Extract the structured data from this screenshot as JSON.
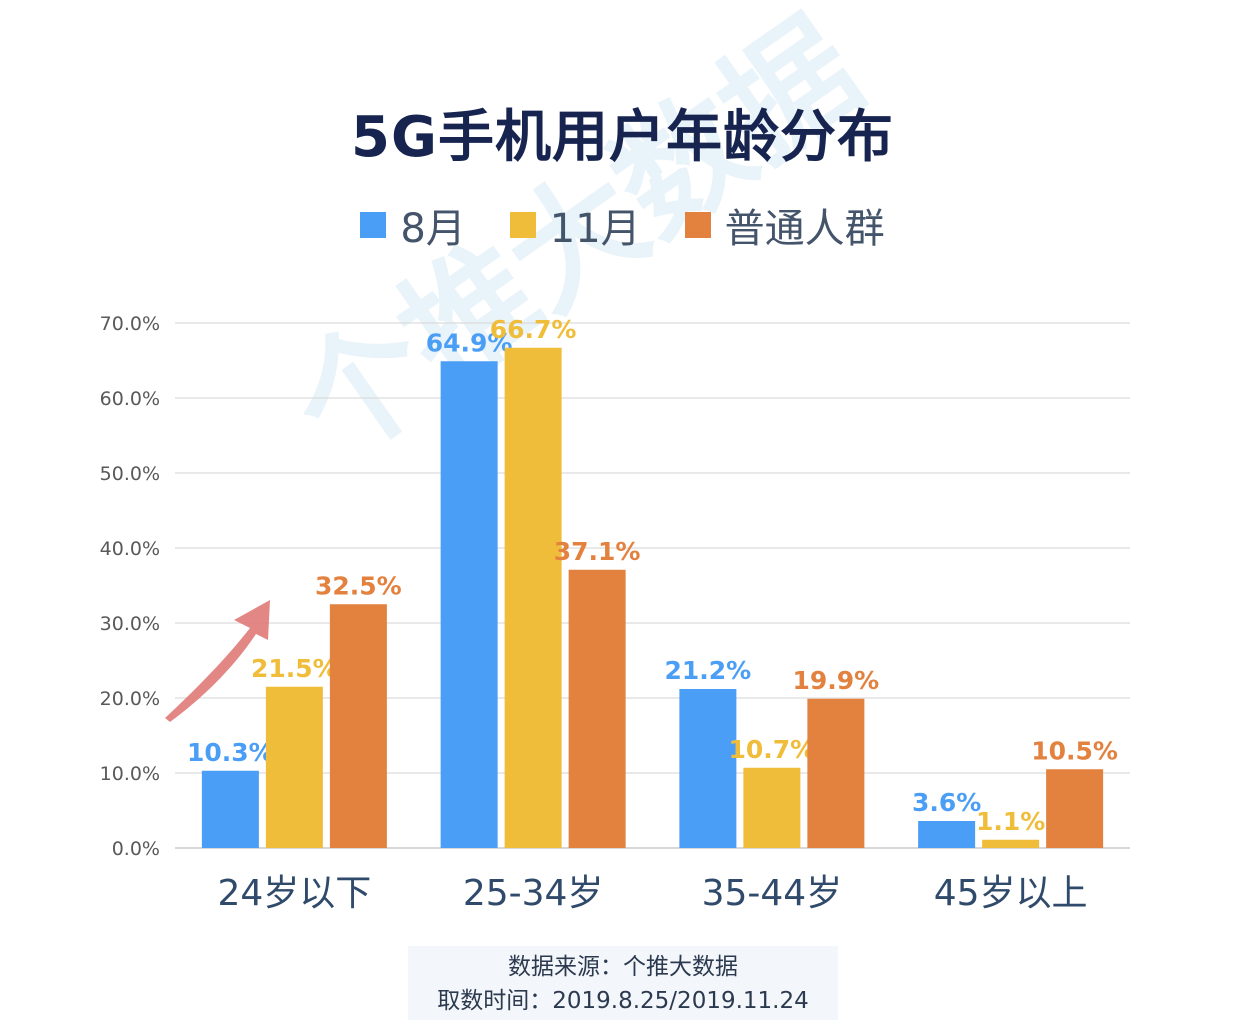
{
  "watermark": "个推大数据",
  "source": {
    "line1": "数据来源：个推大数据",
    "line2": "取数时间：2019.8.25/2019.11.24"
  },
  "colors": {
    "series_8": "#4b9ef5",
    "series_11": "#f0bd3a",
    "series_general": "#e3813f",
    "title": "#16244f",
    "grid": "#dcdcdc",
    "arrow": "#e07a78"
  },
  "chart_data": {
    "type": "bar",
    "title": "5G手机用户年龄分布",
    "categories": [
      "24岁以下",
      "25-34岁",
      "35-44岁",
      "45岁以上"
    ],
    "series": [
      {
        "name": "8月",
        "values": [
          10.3,
          64.9,
          21.2,
          3.6
        ],
        "labels": [
          "10.3%",
          "64.9%",
          "21.2%",
          "3.6%"
        ]
      },
      {
        "name": "11月",
        "values": [
          21.5,
          66.7,
          10.7,
          1.1
        ],
        "labels": [
          "21.5%",
          "66.7%",
          "10.7%",
          "1.1%"
        ]
      },
      {
        "name": "普通人群",
        "values": [
          32.5,
          37.1,
          19.9,
          10.5
        ],
        "labels": [
          "32.5%",
          "37.1%",
          "19.9%",
          "10.5%"
        ]
      }
    ],
    "yticks": [
      "0.0%",
      "10.0%",
      "20.0%",
      "30.0%",
      "40.0%",
      "50.0%",
      "60.0%",
      "70.0%"
    ],
    "ylim": [
      0,
      70
    ],
    "grid": true,
    "legend_position": "top-center"
  }
}
